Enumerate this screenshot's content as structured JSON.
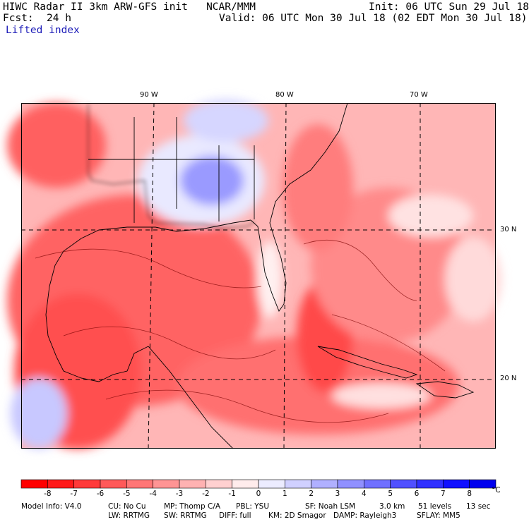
{
  "header": {
    "model_line": "HIWC Radar II 3km ARW-GFS init   NCAR/MMM",
    "init": "Init: 06 UTC Sun 29 Jul 18",
    "fcst_label": "Fcst:",
    "fcst_value": "24 h",
    "valid": "Valid: 06 UTC Mon 30 Jul 18 (02 EDT Mon 30 Jul 18)",
    "field": "Lifted index"
  },
  "map": {
    "lon_labels": [
      "90 W",
      "80 W",
      "70 W"
    ],
    "lat_labels": [
      "30 N",
      "20 N"
    ]
  },
  "colorbar": {
    "unit": "°C",
    "ticks": [
      "-8",
      "-7",
      "-6",
      "-5",
      "-4",
      "-3",
      "-2",
      "-1",
      "0",
      "1",
      "2",
      "3",
      "4",
      "5",
      "6",
      "7",
      "8"
    ],
    "colors": [
      "#ff0000",
      "#ff1a1a",
      "#ff3a3a",
      "#ff5959",
      "#ff7676",
      "#ff9494",
      "#ffb2b2",
      "#ffd0d0",
      "#ffecec",
      "#ececff",
      "#d0d0ff",
      "#b0b0ff",
      "#9090ff",
      "#7070ff",
      "#5050ff",
      "#3030ff",
      "#1010ff",
      "#0000ee"
    ]
  },
  "footer": {
    "line1": [
      "Model Info: V4.0",
      "CU: No Cu",
      "MP: Thomp C/A",
      "PBL: YSU",
      "SF: Noah LSM",
      "3.0 km",
      "51 levels",
      "13 sec"
    ],
    "line2": [
      "LW: RRTMG",
      "SW: RRTMG",
      "DIFF: full",
      "KM: 2D Smagor",
      "DAMP: Rayleigh3",
      "SFLAY: MM5"
    ]
  }
}
